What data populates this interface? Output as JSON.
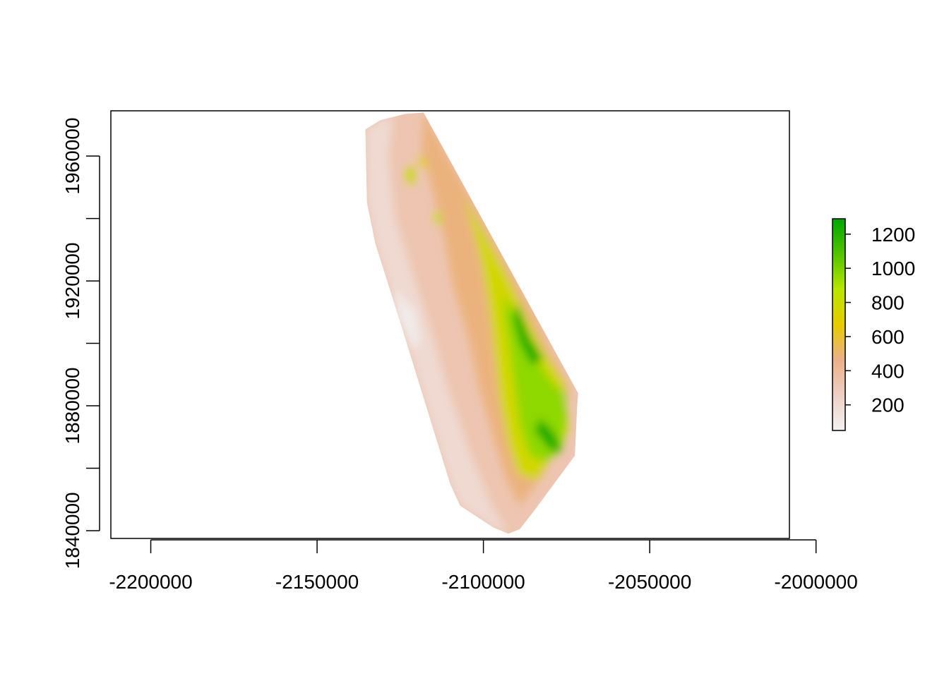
{
  "chart_data": {
    "type": "heatmap",
    "title": "",
    "xlabel": "",
    "ylabel": "",
    "xlim": [
      -2212000,
      -2008000
    ],
    "ylim": [
      1837500,
      1974500
    ],
    "x_ticks": [
      -2200000,
      -2150000,
      -2100000,
      -2050000,
      -2000000
    ],
    "x_tick_labels": [
      "-2200000",
      "-2150000",
      "-2100000",
      "-2050000",
      "-2000000"
    ],
    "y_ticks": [
      1840000,
      1860000,
      1880000,
      1900000,
      1920000,
      1940000,
      1960000
    ],
    "y_tick_labels": [
      "1840000",
      "",
      "1880000",
      "",
      "1920000",
      "",
      "1960000"
    ],
    "legend": {
      "placement": "right",
      "range": [
        50,
        1290
      ],
      "ticks": [
        200,
        400,
        600,
        800,
        1000,
        1200
      ],
      "tick_labels": [
        "200",
        "400",
        "600",
        "800",
        "1000",
        "1200"
      ],
      "colors": [
        "#f2f2f2",
        "#eed0c5",
        "#ebb089",
        "#e6cc00",
        "#b8e600",
        "#52c400",
        "#00a600"
      ]
    },
    "raster_outline": [
      [
        -2135500,
        1968500
      ],
      [
        -2131000,
        1971500
      ],
      [
        -2123500,
        1973500
      ],
      [
        -2118000,
        1974000
      ],
      [
        -2071500,
        1884000
      ],
      [
        -2071800,
        1880000
      ],
      [
        -2072500,
        1864000
      ],
      [
        -2085000,
        1846000
      ],
      [
        -2089000,
        1840500
      ],
      [
        -2092500,
        1839000
      ],
      [
        -2097000,
        1841000
      ],
      [
        -2107000,
        1848000
      ],
      [
        -2110000,
        1855000
      ],
      [
        -2124500,
        1905000
      ],
      [
        -2132500,
        1932000
      ],
      [
        -2135000,
        1945000
      ],
      [
        -2135300,
        1959000
      ]
    ],
    "elevation_zones": [
      {
        "value": 200,
        "polygon": [
          [
            -2135500,
            1968500
          ],
          [
            -2131000,
            1971500
          ],
          [
            -2127000,
            1972500
          ],
          [
            -2128500,
            1960000
          ],
          [
            -2126500,
            1940000
          ],
          [
            -2122000,
            1925000
          ],
          [
            -2116000,
            1905000
          ],
          [
            -2110500,
            1885000
          ],
          [
            -2104000,
            1865000
          ],
          [
            -2097500,
            1848000
          ],
          [
            -2092500,
            1839000
          ],
          [
            -2097000,
            1841000
          ],
          [
            -2107000,
            1848000
          ],
          [
            -2110000,
            1855000
          ],
          [
            -2124500,
            1905000
          ],
          [
            -2132500,
            1932000
          ],
          [
            -2135000,
            1945000
          ],
          [
            -2135300,
            1959000
          ]
        ]
      },
      {
        "value": 90,
        "polygon": [
          [
            -2127000,
            1918000
          ],
          [
            -2120500,
            1910000
          ],
          [
            -2119000,
            1900000
          ],
          [
            -2121000,
            1898000
          ],
          [
            -2126000,
            1908000
          ]
        ]
      },
      {
        "value": 480,
        "polygon": [
          [
            -2118000,
            1974000
          ],
          [
            -2105500,
            1950000
          ],
          [
            -2095000,
            1930000
          ],
          [
            -2085000,
            1910000
          ],
          [
            -2080000,
            1898000
          ],
          [
            -2074000,
            1886000
          ],
          [
            -2076000,
            1870000
          ],
          [
            -2082000,
            1858000
          ],
          [
            -2089000,
            1848000
          ],
          [
            -2093000,
            1856000
          ],
          [
            -2097000,
            1870000
          ],
          [
            -2101000,
            1885000
          ],
          [
            -2104500,
            1902000
          ],
          [
            -2109000,
            1918000
          ],
          [
            -2112000,
            1935000
          ],
          [
            -2115500,
            1950000
          ],
          [
            -2118500,
            1962000
          ]
        ]
      },
      {
        "value": 760,
        "polygon": [
          [
            -2106000,
            1947000
          ],
          [
            -2099000,
            1934000
          ],
          [
            -2093000,
            1922000
          ],
          [
            -2088000,
            1911000
          ],
          [
            -2082000,
            1898000
          ],
          [
            -2075500,
            1887000
          ],
          [
            -2074500,
            1872000
          ],
          [
            -2078000,
            1866000
          ],
          [
            -2084000,
            1856000
          ],
          [
            -2089500,
            1858000
          ],
          [
            -2092500,
            1868000
          ],
          [
            -2095000,
            1882000
          ],
          [
            -2096500,
            1896000
          ],
          [
            -2098000,
            1910000
          ],
          [
            -2100500,
            1926000
          ],
          [
            -2103500,
            1938000
          ]
        ]
      },
      {
        "value": 960,
        "polygon": [
          [
            -2094000,
            1916000
          ],
          [
            -2089000,
            1906000
          ],
          [
            -2084000,
            1895000
          ],
          [
            -2079000,
            1887000
          ],
          [
            -2075500,
            1884000
          ],
          [
            -2075000,
            1876000
          ],
          [
            -2076500,
            1866000
          ],
          [
            -2081000,
            1862000
          ],
          [
            -2086000,
            1864000
          ],
          [
            -2089000,
            1874000
          ],
          [
            -2090500,
            1886000
          ],
          [
            -2092000,
            1898000
          ],
          [
            -2093500,
            1908000
          ]
        ]
      },
      {
        "value": 1230,
        "polygon": [
          [
            -2090000,
            1913000
          ],
          [
            -2086000,
            1902000
          ],
          [
            -2082000,
            1895000
          ],
          [
            -2085500,
            1893000
          ],
          [
            -2089000,
            1900000
          ],
          [
            -2091000,
            1908000
          ]
        ]
      },
      {
        "value": 1250,
        "polygon": [
          [
            -2083000,
            1876000
          ],
          [
            -2078500,
            1871000
          ],
          [
            -2076500,
            1865000
          ],
          [
            -2080000,
            1866000
          ],
          [
            -2084500,
            1872000
          ]
        ]
      },
      {
        "value": 830,
        "polygon": [
          [
            -2122000,
            1957000
          ],
          [
            -2120500,
            1955000
          ],
          [
            -2121500,
            1950000
          ],
          [
            -2123500,
            1954000
          ]
        ]
      },
      {
        "value": 820,
        "polygon": [
          [
            -2113500,
            1943000
          ],
          [
            -2112000,
            1939000
          ],
          [
            -2113500,
            1938000
          ],
          [
            -2115000,
            1941000
          ]
        ]
      },
      {
        "value": 700,
        "polygon": [
          [
            -2118500,
            1960500
          ],
          [
            -2116500,
            1957000
          ],
          [
            -2118000,
            1955500
          ],
          [
            -2119500,
            1959000
          ]
        ]
      }
    ]
  }
}
